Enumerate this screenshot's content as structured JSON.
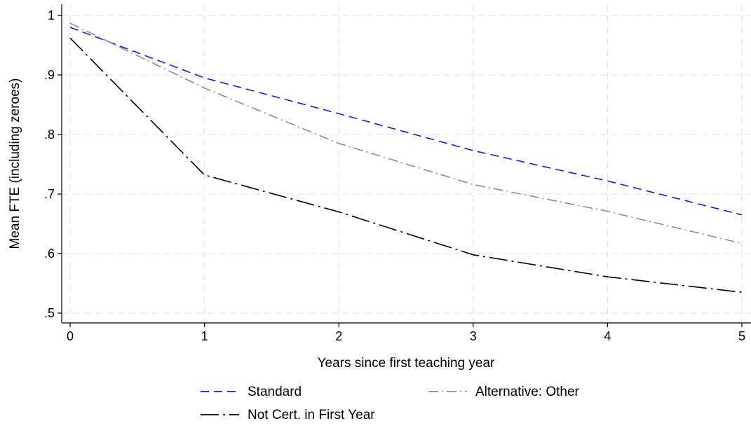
{
  "chart_data": {
    "type": "line",
    "title": "",
    "xlabel": "Years since first teaching year",
    "ylabel": "Mean FTE (including zeroes)",
    "x": [
      0,
      1,
      2,
      3,
      4,
      5
    ],
    "xlim": [
      0,
      5
    ],
    "ylim": [
      0.5,
      1.0
    ],
    "xticks": [
      0,
      1,
      2,
      3,
      4,
      5
    ],
    "xtick_labels": [
      "0",
      "1",
      "2",
      "3",
      "4",
      "5"
    ],
    "yticks": [
      0.5,
      0.6,
      0.7,
      0.8,
      0.9,
      1.0
    ],
    "ytick_labels": [
      ".5",
      ".6",
      ".7",
      ".8",
      ".9",
      "1"
    ],
    "grid": true,
    "legend_position": "bottom",
    "series": [
      {
        "name": "Standard",
        "values": [
          0.98,
          0.895,
          0.835,
          0.773,
          0.722,
          0.665
        ],
        "color": "#1a1adb",
        "dash": "dashed"
      },
      {
        "name": "Alternative: Other",
        "values": [
          0.987,
          0.878,
          0.785,
          0.716,
          0.671,
          0.617
        ],
        "color": "#8c8c8c",
        "dash": "dash-dot"
      },
      {
        "name": "Not Cert. in First Year",
        "values": [
          0.962,
          0.732,
          0.67,
          0.598,
          0.561,
          0.535
        ],
        "color": "#000000",
        "dash": "long-dash-dot"
      }
    ]
  }
}
